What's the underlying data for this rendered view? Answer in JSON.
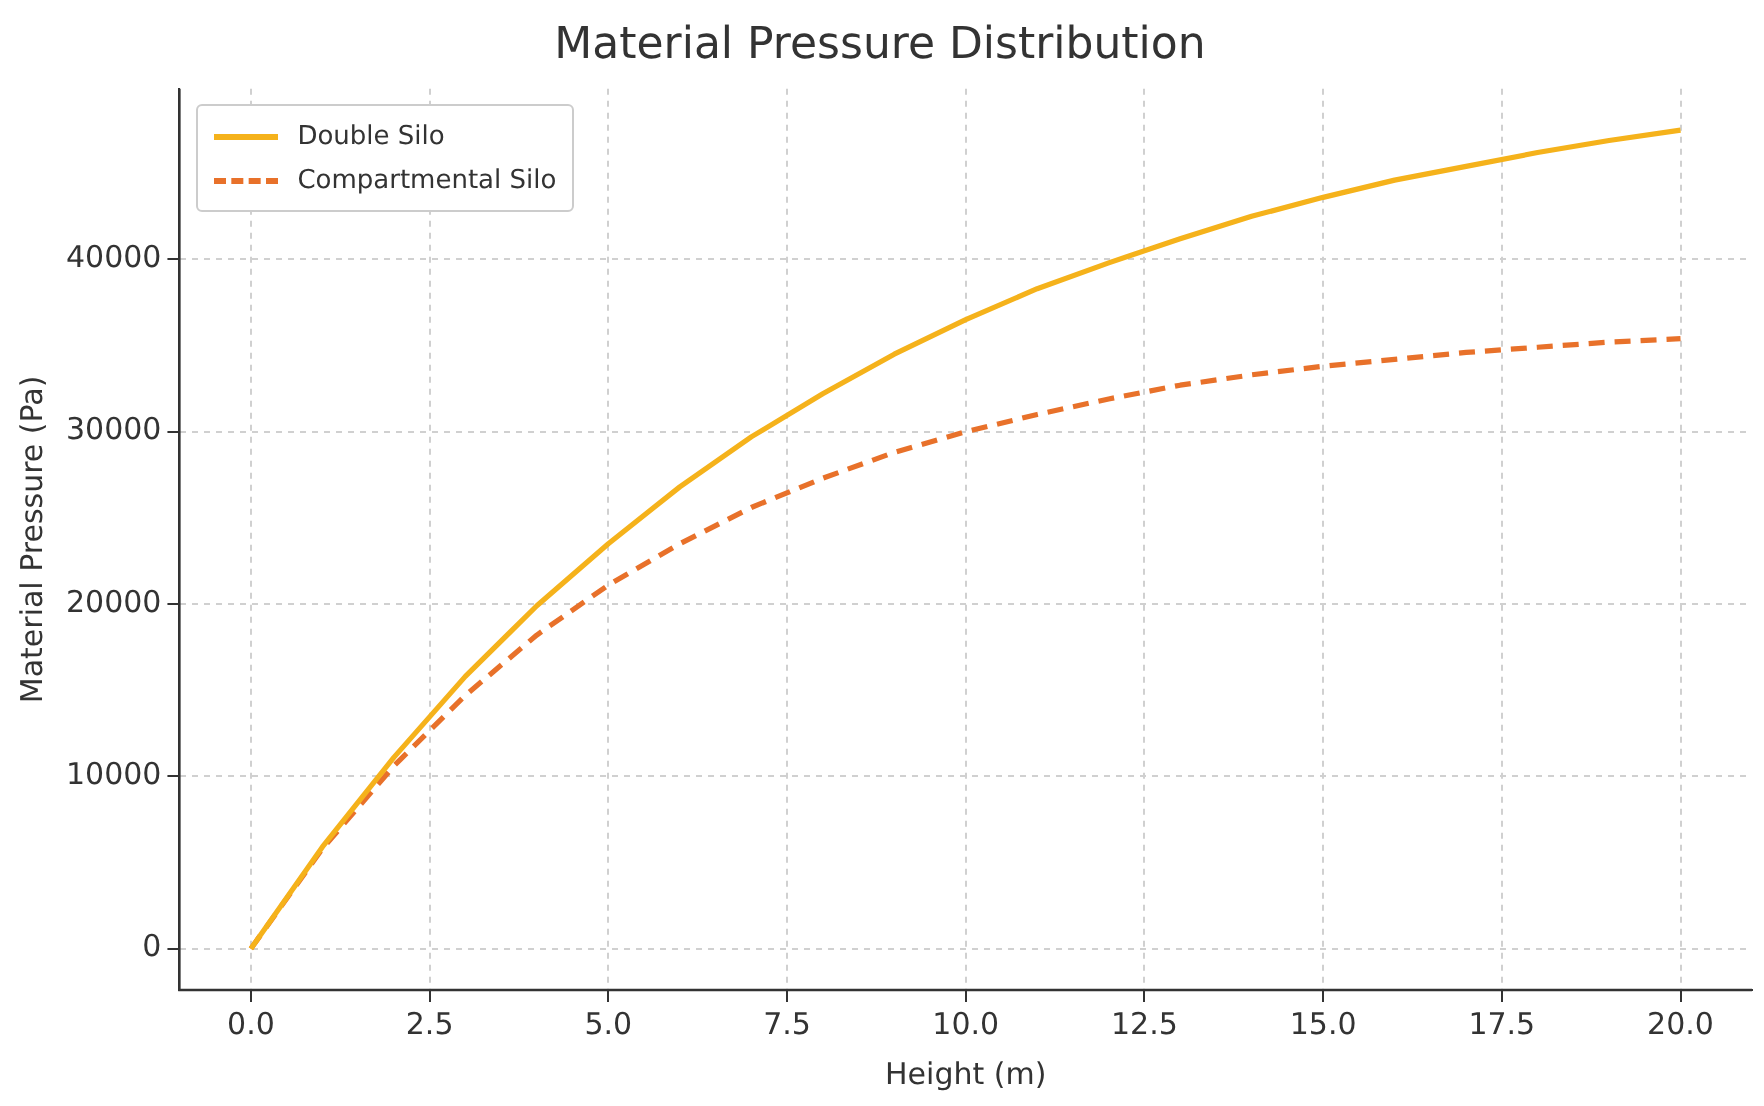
{
  "chart_data": {
    "type": "line",
    "title": "Material Pressure Distribution",
    "xlabel": "Height (m)",
    "ylabel": "Material Pressure (Pa)",
    "x": [
      0,
      1,
      2,
      3,
      4,
      5,
      6,
      7,
      8,
      9,
      10,
      11,
      12,
      13,
      14,
      15,
      16,
      17,
      18,
      19,
      20
    ],
    "series": [
      {
        "name": "Double Silo",
        "color": "#f5b21b",
        "line_style": "solid",
        "values": [
          0,
          5900,
          11100,
          15800,
          19900,
          23500,
          26800,
          29700,
          32200,
          34500,
          36500,
          38300,
          39800,
          41200,
          42500,
          43600,
          44600,
          45400,
          46200,
          46900,
          47500
        ]
      },
      {
        "name": "Compartmental Silo",
        "color": "#e8712a",
        "line_style": "dashed",
        "values": [
          0,
          5800,
          10600,
          14700,
          18200,
          21100,
          23500,
          25600,
          27300,
          28800,
          30000,
          31000,
          31900,
          32700,
          33300,
          33800,
          34200,
          34600,
          34900,
          35200,
          35400
        ]
      }
    ],
    "xlim": [
      -1,
      21
    ],
    "xticks": [
      {
        "value": 0,
        "label": "0.0"
      },
      {
        "value": 2.5,
        "label": "2.5"
      },
      {
        "value": 5,
        "label": "5.0"
      },
      {
        "value": 7.5,
        "label": "7.5"
      },
      {
        "value": 10,
        "label": "10.0"
      },
      {
        "value": 12.5,
        "label": "12.5"
      },
      {
        "value": 15,
        "label": "15.0"
      },
      {
        "value": 17.5,
        "label": "17.5"
      },
      {
        "value": 20,
        "label": "20.0"
      }
    ],
    "ylim": [
      -2400,
      49900
    ],
    "yticks": [
      0,
      10000,
      20000,
      30000,
      40000
    ],
    "grid": true,
    "legend": "top left",
    "marker": "none"
  }
}
